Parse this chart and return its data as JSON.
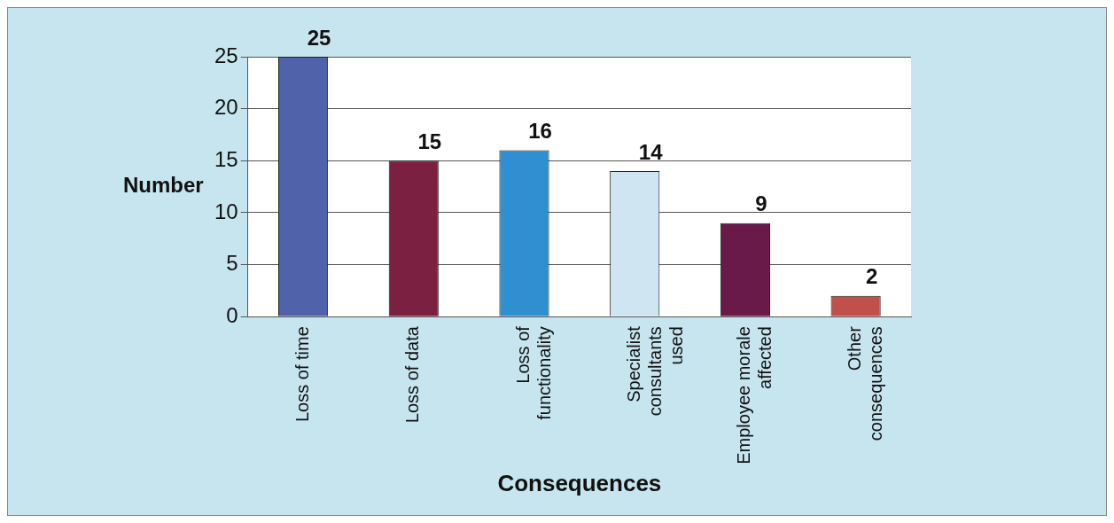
{
  "chart_data": {
    "type": "bar",
    "xlabel": "Consequences",
    "ylabel": "Number",
    "categories": [
      "Loss of time",
      "Loss of data",
      "Loss of functionality",
      "Specialist consultants used",
      "Employee morale affected",
      "Other consequences"
    ],
    "values": [
      25,
      15,
      16,
      14,
      9,
      2
    ],
    "colors": [
      "#4f62aa",
      "#7b2040",
      "#2f8fd0",
      "#cfe6f2",
      "#6a1a48",
      "#c2504a"
    ],
    "ylim": [
      0,
      25
    ],
    "yticks": [
      0,
      5,
      10,
      15,
      20,
      25
    ],
    "grid": "y",
    "data_labels": true
  }
}
